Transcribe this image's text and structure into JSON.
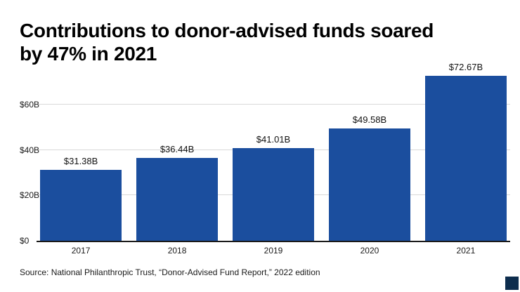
{
  "title": {
    "full": "Contributions to donor-advised funds soared by 47% in 2021",
    "line1": "Contributions to donor-advised funds soared",
    "line2": "by 47% in 2021"
  },
  "source": "Source: National Philanthropic Trust, “Donor-Advised Fund Report,” 2022 edition",
  "colors": {
    "bar": "#1b4e9e",
    "logo": "#0d2d4d",
    "grid": "#d9d9d9",
    "baseline": "#1a1a1a"
  },
  "chart_data": {
    "type": "bar",
    "title": "Contributions to donor-advised funds soared by 47% in 2021",
    "categories": [
      "2017",
      "2018",
      "2019",
      "2020",
      "2021"
    ],
    "values": [
      31.38,
      36.44,
      41.01,
      49.58,
      72.67
    ],
    "value_labels": [
      "$31.38B",
      "$36.44B",
      "$41.01B",
      "$49.58B",
      "$72.67B"
    ],
    "xlabel": "",
    "ylabel": "",
    "ylim": [
      0,
      74
    ],
    "yticks": [
      {
        "v": 0,
        "label": "$0"
      },
      {
        "v": 20,
        "label": "$20B"
      },
      {
        "v": 40,
        "label": "$40B"
      },
      {
        "v": 60,
        "label": "$60B"
      }
    ],
    "grid": true,
    "legend": false
  }
}
